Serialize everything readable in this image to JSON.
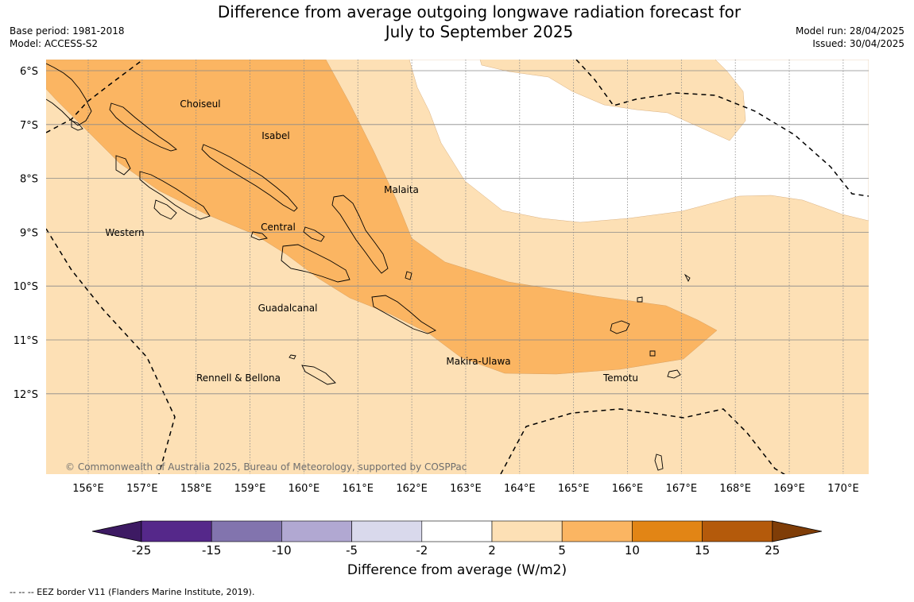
{
  "title_line1": "Difference from average outgoing longwave radiation forecast for",
  "title_line2": "July to September 2025",
  "meta_left": [
    "Base period: 1981-2018",
    "Model: ACCESS-S2"
  ],
  "meta_right": [
    "Model run: 28/04/2025",
    "Issued: 30/04/2025"
  ],
  "copyright": "© Commonwealth of Australia 2025, Bureau of Meteorology, supported by COSPPac",
  "footnote": "--  --  -- EEZ border V11 (Flanders Marine Institute, 2019).",
  "colorbar": {
    "title": "Difference from average (W/m2)",
    "ticks": [
      "-25",
      "-15",
      "-10",
      "-5",
      "-2",
      "2",
      "5",
      "10",
      "15",
      "25"
    ],
    "colors": [
      "#3d1a63",
      "#55288a",
      "#8274ae",
      "#b1a8d2",
      "#d9d9ec",
      "#ffffff",
      "#fde0b5",
      "#fbb562",
      "#e28515",
      "#b45a0b",
      "#7f3d07"
    ]
  },
  "map": {
    "lon_labels": [
      "156°E",
      "157°E",
      "158°E",
      "159°E",
      "160°E",
      "161°E",
      "162°E",
      "163°E",
      "164°E",
      "165°E",
      "166°E",
      "167°E",
      "168°E",
      "169°E",
      "170°E"
    ],
    "lat_labels": [
      "6°S",
      "7°S",
      "8°S",
      "9°S",
      "10°S",
      "11°S",
      "12°S"
    ],
    "provinces": [
      "Choiseul",
      "Isabel",
      "Malaita",
      "Western",
      "Central",
      "Guadalcanal",
      "Makira-Ulawa",
      "Rennell & Bellona",
      "Temotu"
    ],
    "colors": {
      "anomaly_2_5": "#fde0b5",
      "anomaly_5_10": "#fbb562",
      "neutral": "#ffffff"
    }
  }
}
